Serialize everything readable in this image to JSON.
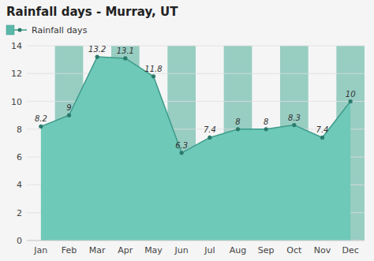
{
  "chart_data": {
    "type": "area",
    "title": "Rainfall days - Murray, UT",
    "categories": [
      "Jan",
      "Feb",
      "Mar",
      "Apr",
      "May",
      "Jun",
      "Jul",
      "Aug",
      "Sep",
      "Oct",
      "Nov",
      "Dec"
    ],
    "series": [
      {
        "name": "Rainfall days",
        "color": "#3d9b8a",
        "marker": "circle",
        "values": [
          8.2,
          9,
          13.2,
          13.1,
          11.8,
          6.3,
          7.4,
          8,
          8,
          8.3,
          7.4,
          10
        ]
      }
    ],
    "ylim": [
      0,
      14
    ],
    "yticks": [
      0,
      2,
      4,
      6,
      8,
      10,
      12,
      14
    ],
    "grid": true,
    "legend": "upper left",
    "data_labels": true
  }
}
